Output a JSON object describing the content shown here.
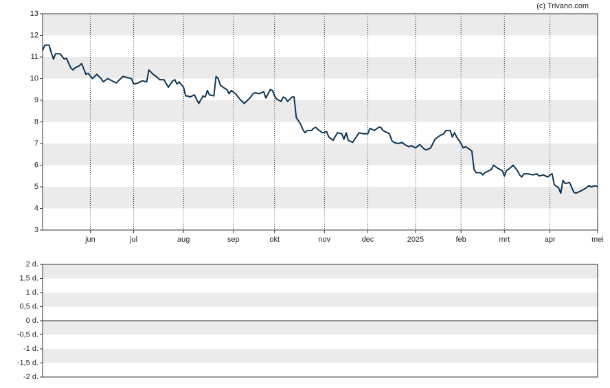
{
  "credit": "(c) Trivano.com",
  "chart_data": [
    {
      "type": "line",
      "xlim": [
        0,
        256
      ],
      "xticks": [
        {
          "value": 22,
          "label": "jun"
        },
        {
          "value": 42,
          "label": "jul"
        },
        {
          "value": 65,
          "label": "aug"
        },
        {
          "value": 88,
          "label": "sep"
        },
        {
          "value": 107,
          "label": "okt"
        },
        {
          "value": 130,
          "label": "nov"
        },
        {
          "value": 150,
          "label": "dec"
        },
        {
          "value": 172,
          "label": "2025"
        },
        {
          "value": 193,
          "label": "feb"
        },
        {
          "value": 213,
          "label": "mrt"
        },
        {
          "value": 234,
          "label": "apr"
        },
        {
          "value": 256,
          "label": "mei"
        }
      ],
      "ylim": [
        3,
        13
      ],
      "yticks": [
        3,
        4,
        5,
        6,
        7,
        8,
        9,
        10,
        11,
        12,
        13
      ],
      "grid": true,
      "series": [
        {
          "color": "#0f3350",
          "x": [
            0,
            1,
            3,
            4,
            5,
            6,
            8,
            10,
            11,
            13,
            14,
            15,
            17,
            18,
            20,
            21,
            23,
            25,
            27,
            28,
            30,
            32,
            34,
            35,
            37,
            39,
            41,
            42,
            44,
            46,
            48,
            49,
            51,
            53,
            54,
            56,
            58,
            60,
            61,
            62,
            63,
            65,
            66,
            67,
            68,
            70,
            71,
            72,
            74,
            75,
            76,
            77,
            79,
            80,
            81,
            82,
            84,
            85,
            86,
            87,
            89,
            91,
            93,
            94,
            96,
            97,
            98,
            100,
            102,
            103,
            105,
            106,
            107,
            108,
            110,
            111,
            112,
            113,
            115,
            116,
            117,
            119,
            120,
            121,
            122,
            124,
            125,
            126,
            127,
            129,
            131,
            132,
            134,
            136,
            138,
            139,
            140,
            141,
            143,
            144,
            146,
            148,
            150,
            151,
            153,
            155,
            156,
            157,
            158,
            160,
            161,
            162,
            164,
            166,
            167,
            169,
            170,
            172,
            174,
            176,
            177,
            179,
            180,
            181,
            183,
            185,
            186,
            188,
            189,
            190,
            191,
            193,
            194,
            195,
            196,
            198,
            199,
            200,
            202,
            203,
            204,
            205,
            207,
            208,
            210,
            212,
            213,
            214,
            216,
            217,
            219,
            220,
            221,
            222,
            224,
            226,
            228,
            229,
            231,
            233,
            234,
            235,
            236,
            238,
            239,
            240,
            241,
            243,
            245,
            246,
            248,
            250,
            252,
            253,
            255,
            256
          ],
          "values": [
            11.3,
            11.55,
            11.55,
            11.2,
            10.9,
            11.15,
            11.15,
            10.9,
            10.95,
            10.5,
            10.4,
            10.5,
            10.6,
            10.7,
            10.2,
            10.25,
            10.0,
            10.2,
            10.0,
            9.85,
            10.0,
            9.9,
            9.8,
            9.9,
            10.1,
            10.05,
            10.0,
            9.75,
            9.8,
            9.9,
            9.85,
            10.4,
            10.2,
            10.05,
            9.95,
            9.95,
            9.6,
            9.9,
            9.95,
            9.75,
            9.85,
            9.6,
            9.2,
            9.2,
            9.15,
            9.25,
            9.05,
            8.85,
            9.2,
            9.15,
            9.45,
            9.25,
            9.2,
            10.1,
            10.0,
            9.7,
            9.55,
            9.5,
            9.3,
            9.45,
            9.3,
            9.05,
            8.85,
            8.95,
            9.15,
            9.3,
            9.35,
            9.3,
            9.4,
            9.1,
            9.5,
            9.45,
            9.2,
            9.05,
            8.95,
            9.15,
            9.1,
            8.95,
            9.15,
            9.15,
            8.2,
            7.9,
            7.65,
            7.5,
            7.6,
            7.6,
            7.7,
            7.75,
            7.65,
            7.5,
            7.55,
            7.3,
            7.15,
            7.5,
            7.45,
            7.2,
            7.5,
            7.15,
            7.05,
            7.2,
            7.5,
            7.45,
            7.45,
            7.7,
            7.6,
            7.75,
            7.75,
            7.6,
            7.55,
            7.45,
            7.15,
            7.05,
            7.0,
            7.05,
            6.95,
            6.85,
            6.9,
            6.8,
            6.95,
            6.75,
            6.7,
            6.8,
            7.0,
            7.2,
            7.35,
            7.45,
            7.6,
            7.6,
            7.3,
            7.5,
            7.3,
            7.0,
            6.8,
            6.85,
            6.8,
            6.65,
            5.8,
            5.65,
            5.65,
            5.55,
            5.65,
            5.7,
            5.8,
            6.0,
            5.85,
            5.75,
            5.5,
            5.75,
            5.9,
            6.0,
            5.75,
            5.55,
            5.45,
            5.6,
            5.6,
            5.55,
            5.6,
            5.5,
            5.55,
            5.45,
            5.55,
            5.6,
            5.1,
            4.95,
            4.7,
            5.3,
            5.15,
            5.2,
            4.75,
            4.7,
            4.8,
            4.9,
            5.05,
            5.0,
            5.05,
            5.0
          ]
        }
      ]
    },
    {
      "type": "line",
      "ylim": [
        -2,
        2
      ],
      "yticks": [
        {
          "value": 2,
          "label": "2 d."
        },
        {
          "value": 1.5,
          "label": "1,5 d."
        },
        {
          "value": 1,
          "label": "1 d."
        },
        {
          "value": 0.5,
          "label": "0,5 d."
        },
        {
          "value": 0,
          "label": "0 d."
        },
        {
          "value": -0.5,
          "label": "-0,5 d."
        },
        {
          "value": -1,
          "label": "-1 d."
        },
        {
          "value": -1.5,
          "label": "-1,5 d."
        },
        {
          "value": -2,
          "label": "-2 d."
        }
      ]
    }
  ]
}
